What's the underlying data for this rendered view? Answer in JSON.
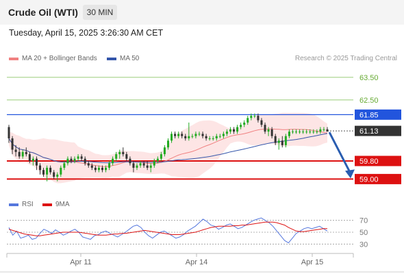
{
  "header": {
    "title": "Crude Oil (WTI)",
    "timeframe": "30 MIN"
  },
  "timestamp": "Tuesday, April 15, 2025 3:26:30 AM CET",
  "credit": "Research © 2025 Trading Central",
  "legend": {
    "ma20": "MA 20 + Bollinger Bands",
    "ma50": "MA 50",
    "rsi": "RSI",
    "rsi9": "9MA"
  },
  "colors": {
    "resistance": "#2255dd",
    "support": "#dd1111",
    "target": "#77bb44",
    "ma20": "#f08080",
    "ma50": "#3355aa",
    "bollinger_fill": "#fde0e0",
    "candle_up": "#22aa22",
    "candle_down": "#333333",
    "current_price": "#333333",
    "arrow": "#2a5db0"
  },
  "chart_data": [
    {
      "type": "candlestick",
      "title": "Crude Oil (WTI)",
      "ylim": [
        58.8,
        63.8
      ],
      "x_ticks": [
        "Apr 11",
        "Apr 14",
        "Apr 15"
      ],
      "levels": [
        {
          "value": 63.5,
          "label": "63.50",
          "kind": "target"
        },
        {
          "value": 62.5,
          "label": "62.50",
          "kind": "target"
        },
        {
          "value": 61.85,
          "label": "61.85",
          "kind": "resistance"
        },
        {
          "value": 61.13,
          "label": "61.13",
          "kind": "current"
        },
        {
          "value": 59.8,
          "label": "59.80",
          "kind": "support"
        },
        {
          "value": 59.0,
          "label": "59.00",
          "kind": "support"
        }
      ],
      "forecast_arrow": {
        "from": 61.13,
        "to": 59.0
      },
      "ohlc": [
        [
          61.3,
          61.4,
          60.6,
          60.8
        ],
        [
          60.8,
          60.9,
          60.1,
          60.3
        ],
        [
          60.3,
          60.5,
          60.0,
          60.2
        ],
        [
          60.2,
          60.4,
          59.9,
          60.0
        ],
        [
          60.0,
          60.3,
          59.9,
          60.2
        ],
        [
          60.2,
          60.4,
          60.0,
          60.1
        ],
        [
          60.1,
          60.2,
          59.7,
          59.8
        ],
        [
          59.8,
          60.0,
          59.6,
          59.9
        ],
        [
          59.9,
          60.0,
          59.4,
          59.6
        ],
        [
          59.6,
          59.7,
          59.2,
          59.4
        ],
        [
          59.4,
          59.5,
          59.1,
          59.2
        ],
        [
          59.2,
          59.6,
          58.9,
          59.5
        ],
        [
          59.5,
          59.6,
          59.2,
          59.3
        ],
        [
          59.3,
          59.4,
          59.0,
          59.1
        ],
        [
          59.1,
          59.3,
          58.9,
          59.2
        ],
        [
          59.2,
          59.6,
          59.1,
          59.5
        ],
        [
          59.5,
          59.8,
          59.4,
          59.7
        ],
        [
          59.7,
          60.0,
          59.6,
          59.9
        ],
        [
          59.9,
          60.0,
          59.7,
          59.8
        ],
        [
          59.8,
          60.0,
          59.7,
          59.9
        ],
        [
          59.9,
          60.1,
          59.8,
          60.0
        ],
        [
          60.0,
          60.1,
          59.8,
          59.9
        ],
        [
          59.9,
          60.0,
          59.6,
          59.7
        ],
        [
          59.7,
          59.8,
          59.5,
          59.6
        ],
        [
          59.6,
          59.7,
          59.4,
          59.5
        ],
        [
          59.5,
          59.6,
          59.3,
          59.4
        ],
        [
          59.4,
          59.6,
          59.3,
          59.5
        ],
        [
          59.5,
          59.6,
          59.3,
          59.4
        ],
        [
          59.4,
          59.6,
          59.3,
          59.5
        ],
        [
          59.5,
          59.8,
          59.4,
          59.7
        ],
        [
          59.7,
          60.0,
          59.6,
          59.9
        ],
        [
          59.9,
          60.2,
          59.8,
          60.1
        ],
        [
          60.1,
          60.3,
          59.9,
          60.2
        ],
        [
          60.2,
          60.4,
          60.0,
          60.1
        ],
        [
          60.1,
          60.2,
          59.8,
          59.9
        ],
        [
          59.9,
          60.0,
          59.6,
          59.7
        ],
        [
          59.7,
          59.8,
          59.3,
          59.5
        ],
        [
          59.5,
          59.7,
          59.4,
          59.6
        ],
        [
          59.6,
          59.8,
          59.5,
          59.7
        ],
        [
          59.7,
          59.8,
          59.5,
          59.6
        ],
        [
          59.6,
          59.8,
          59.4,
          59.5
        ],
        [
          59.5,
          59.7,
          59.3,
          59.6
        ],
        [
          59.6,
          59.9,
          59.5,
          59.8
        ],
        [
          59.8,
          60.0,
          59.7,
          59.9
        ],
        [
          59.9,
          60.2,
          59.8,
          60.1
        ],
        [
          60.1,
          60.5,
          60.0,
          60.4
        ],
        [
          60.4,
          60.8,
          60.3,
          60.7
        ],
        [
          60.7,
          61.1,
          60.6,
          61.0
        ],
        [
          61.0,
          61.1,
          60.8,
          60.9
        ],
        [
          60.9,
          61.1,
          60.8,
          61.0
        ],
        [
          61.0,
          61.1,
          60.8,
          60.9
        ],
        [
          60.9,
          61.0,
          60.7,
          60.8
        ],
        [
          60.8,
          61.5,
          60.7,
          60.9
        ],
        [
          60.9,
          61.0,
          60.8,
          60.9
        ],
        [
          60.9,
          61.1,
          60.8,
          61.0
        ],
        [
          61.0,
          61.1,
          60.9,
          61.0
        ],
        [
          61.0,
          61.1,
          60.8,
          60.9
        ],
        [
          60.9,
          61.0,
          60.7,
          60.8
        ],
        [
          60.8,
          60.9,
          60.7,
          60.8
        ],
        [
          60.8,
          60.9,
          60.7,
          60.8
        ],
        [
          60.8,
          61.0,
          60.7,
          60.9
        ],
        [
          60.9,
          61.0,
          60.8,
          60.9
        ],
        [
          60.9,
          61.1,
          60.8,
          61.0
        ],
        [
          61.0,
          61.2,
          60.9,
          61.1
        ],
        [
          61.1,
          61.3,
          61.0,
          61.2
        ],
        [
          61.2,
          61.3,
          61.0,
          61.1
        ],
        [
          61.1,
          61.4,
          61.0,
          61.3
        ],
        [
          61.3,
          61.5,
          61.2,
          61.4
        ],
        [
          61.4,
          61.6,
          61.3,
          61.5
        ],
        [
          61.5,
          61.8,
          61.4,
          61.7
        ],
        [
          61.7,
          61.9,
          61.6,
          61.8
        ],
        [
          61.8,
          61.9,
          61.7,
          61.8
        ],
        [
          61.8,
          61.9,
          61.5,
          61.6
        ],
        [
          61.6,
          61.7,
          61.3,
          61.4
        ],
        [
          61.4,
          61.5,
          61.0,
          61.1
        ],
        [
          61.1,
          61.3,
          60.9,
          61.2
        ],
        [
          61.2,
          61.3,
          60.8,
          60.9
        ],
        [
          60.9,
          61.0,
          60.5,
          60.6
        ],
        [
          60.6,
          60.8,
          60.3,
          60.7
        ],
        [
          60.7,
          60.9,
          60.4,
          60.5
        ],
        [
          60.5,
          61.0,
          60.4,
          60.9
        ],
        [
          60.9,
          61.2,
          60.8,
          61.1
        ],
        [
          61.1,
          61.2,
          61.0,
          61.1
        ],
        [
          61.1,
          61.2,
          61.0,
          61.1
        ],
        [
          61.1,
          61.2,
          61.0,
          61.1
        ],
        [
          61.1,
          61.2,
          61.0,
          61.1
        ],
        [
          61.1,
          61.2,
          61.0,
          61.1
        ],
        [
          61.1,
          61.2,
          61.0,
          61.1
        ],
        [
          61.1,
          61.2,
          61.0,
          61.1
        ],
        [
          61.1,
          61.2,
          61.0,
          61.1
        ],
        [
          61.1,
          61.3,
          61.0,
          61.2
        ],
        [
          61.2,
          61.3,
          61.1,
          61.2
        ],
        [
          61.2,
          61.3,
          61.1,
          61.1
        ]
      ]
    },
    {
      "type": "line",
      "title": "RSI",
      "ylim": [
        20,
        80
      ],
      "y_ticks": [
        30,
        50,
        70
      ],
      "series": [
        {
          "name": "RSI",
          "values": [
            58,
            45,
            52,
            40,
            42,
            45,
            38,
            40,
            48,
            55,
            52,
            48,
            54,
            50,
            45,
            48,
            52,
            55,
            50,
            42,
            40,
            38,
            44,
            46,
            50,
            52,
            48,
            45,
            42,
            46,
            50,
            55,
            60,
            62,
            58,
            50,
            44,
            40,
            45,
            50,
            52,
            48,
            44,
            40,
            42,
            46,
            52,
            56,
            60,
            66,
            72,
            68,
            62,
            60,
            55,
            58,
            62,
            64,
            60,
            56,
            58,
            62,
            66,
            70,
            72,
            74,
            70,
            66,
            60,
            52,
            44,
            36,
            32,
            40,
            48,
            52,
            56,
            58,
            56,
            58,
            60,
            56,
            52
          ]
        },
        {
          "name": "9MA",
          "values": [
            55,
            53,
            51,
            49,
            47,
            46,
            45,
            44,
            44,
            45,
            46,
            47,
            48,
            49,
            50,
            50,
            50,
            50,
            50,
            49,
            48,
            47,
            46,
            45,
            45,
            45,
            46,
            47,
            47,
            48,
            48,
            49,
            50,
            51,
            52,
            53,
            52,
            51,
            50,
            49,
            48,
            47,
            46,
            46,
            46,
            47,
            48,
            49,
            50,
            52,
            54,
            56,
            58,
            59,
            60,
            60,
            60,
            60,
            61,
            61,
            62,
            62,
            63,
            64,
            65,
            66,
            67,
            67,
            67,
            66,
            64,
            62,
            58,
            55,
            52,
            51,
            51,
            52,
            53,
            54,
            55,
            56,
            56
          ]
        }
      ]
    }
  ]
}
